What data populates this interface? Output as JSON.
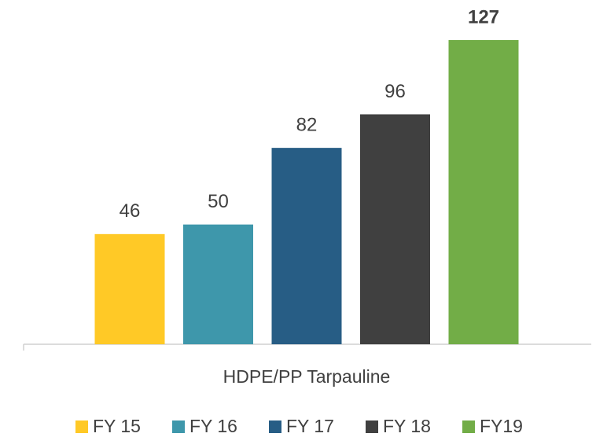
{
  "chart_data": {
    "type": "bar",
    "categories": [
      "HDPE/PP Tarpauline"
    ],
    "series": [
      {
        "name": "FY 15",
        "color": "#ffc926",
        "values": [
          46
        ]
      },
      {
        "name": "FY 16",
        "color": "#3e97ab",
        "values": [
          50
        ]
      },
      {
        "name": "FY 17",
        "color": "#275d85",
        "values": [
          82
        ]
      },
      {
        "name": "FY 18",
        "color": "#404040",
        "values": [
          96
        ]
      },
      {
        "name": "FY19",
        "color": "#72ad47",
        "values": [
          127
        ]
      }
    ],
    "legend": "bottom"
  }
}
